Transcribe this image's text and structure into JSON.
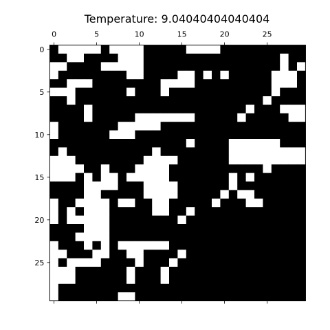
{
  "chart_data": {
    "type": "heatmap",
    "title": "Temperature: 9.04040404040404",
    "xlabel": "",
    "ylabel": "",
    "xlim": [
      -0.5,
      29.5
    ],
    "ylim": [
      29.5,
      -0.5
    ],
    "x_ticks": [
      0,
      5,
      10,
      15,
      20,
      25
    ],
    "y_ticks": [
      0,
      5,
      10,
      15,
      20,
      25
    ],
    "grid": false,
    "legend": "none",
    "colormap": {
      "-1": "#000000",
      "1": "#ffffff"
    },
    "note_on_data": "30x30 spin lattice; each row string uses '0' for black (-1) and '1' for white (+1)",
    "rows": [
      "011111011110000011110000000000",
      "001100001110000000000000000100",
      "110000111110000000000000000101",
      "100000000110000110101000001110",
      "001110000000011110000000001110",
      "111000000100010000000000001000",
      "001000000000000000000000010000",
      "000010000000000000000001000111",
      "000010000011111110000010000011",
      "100000001111100000000000000000",
      "100000011100000000000000000000",
      "000000000000000010000111111000",
      "010000000000100000000111111111",
      "111000000001111000000111111111",
      "111100100011110000000000010000",
      "111010110111110000000101000000",
      "000011110001111000000100000000",
      "000011000001111000001011000000",
      "100111101100110000010001100000",
      "101011100000110010000000000000",
      "101111100000000100000000000000",
      "000011100000000000000000000000",
      "000111100000000000000000000000",
      "100010101111110000000000000000",
      "110001100110000100000000000000",
      "101111000010001000000000000000",
      "111000000100010000000000000000",
      "111000000100010000000000000000",
      "100000000000000000000000000000",
      "100000001100000000000000000000"
    ]
  }
}
